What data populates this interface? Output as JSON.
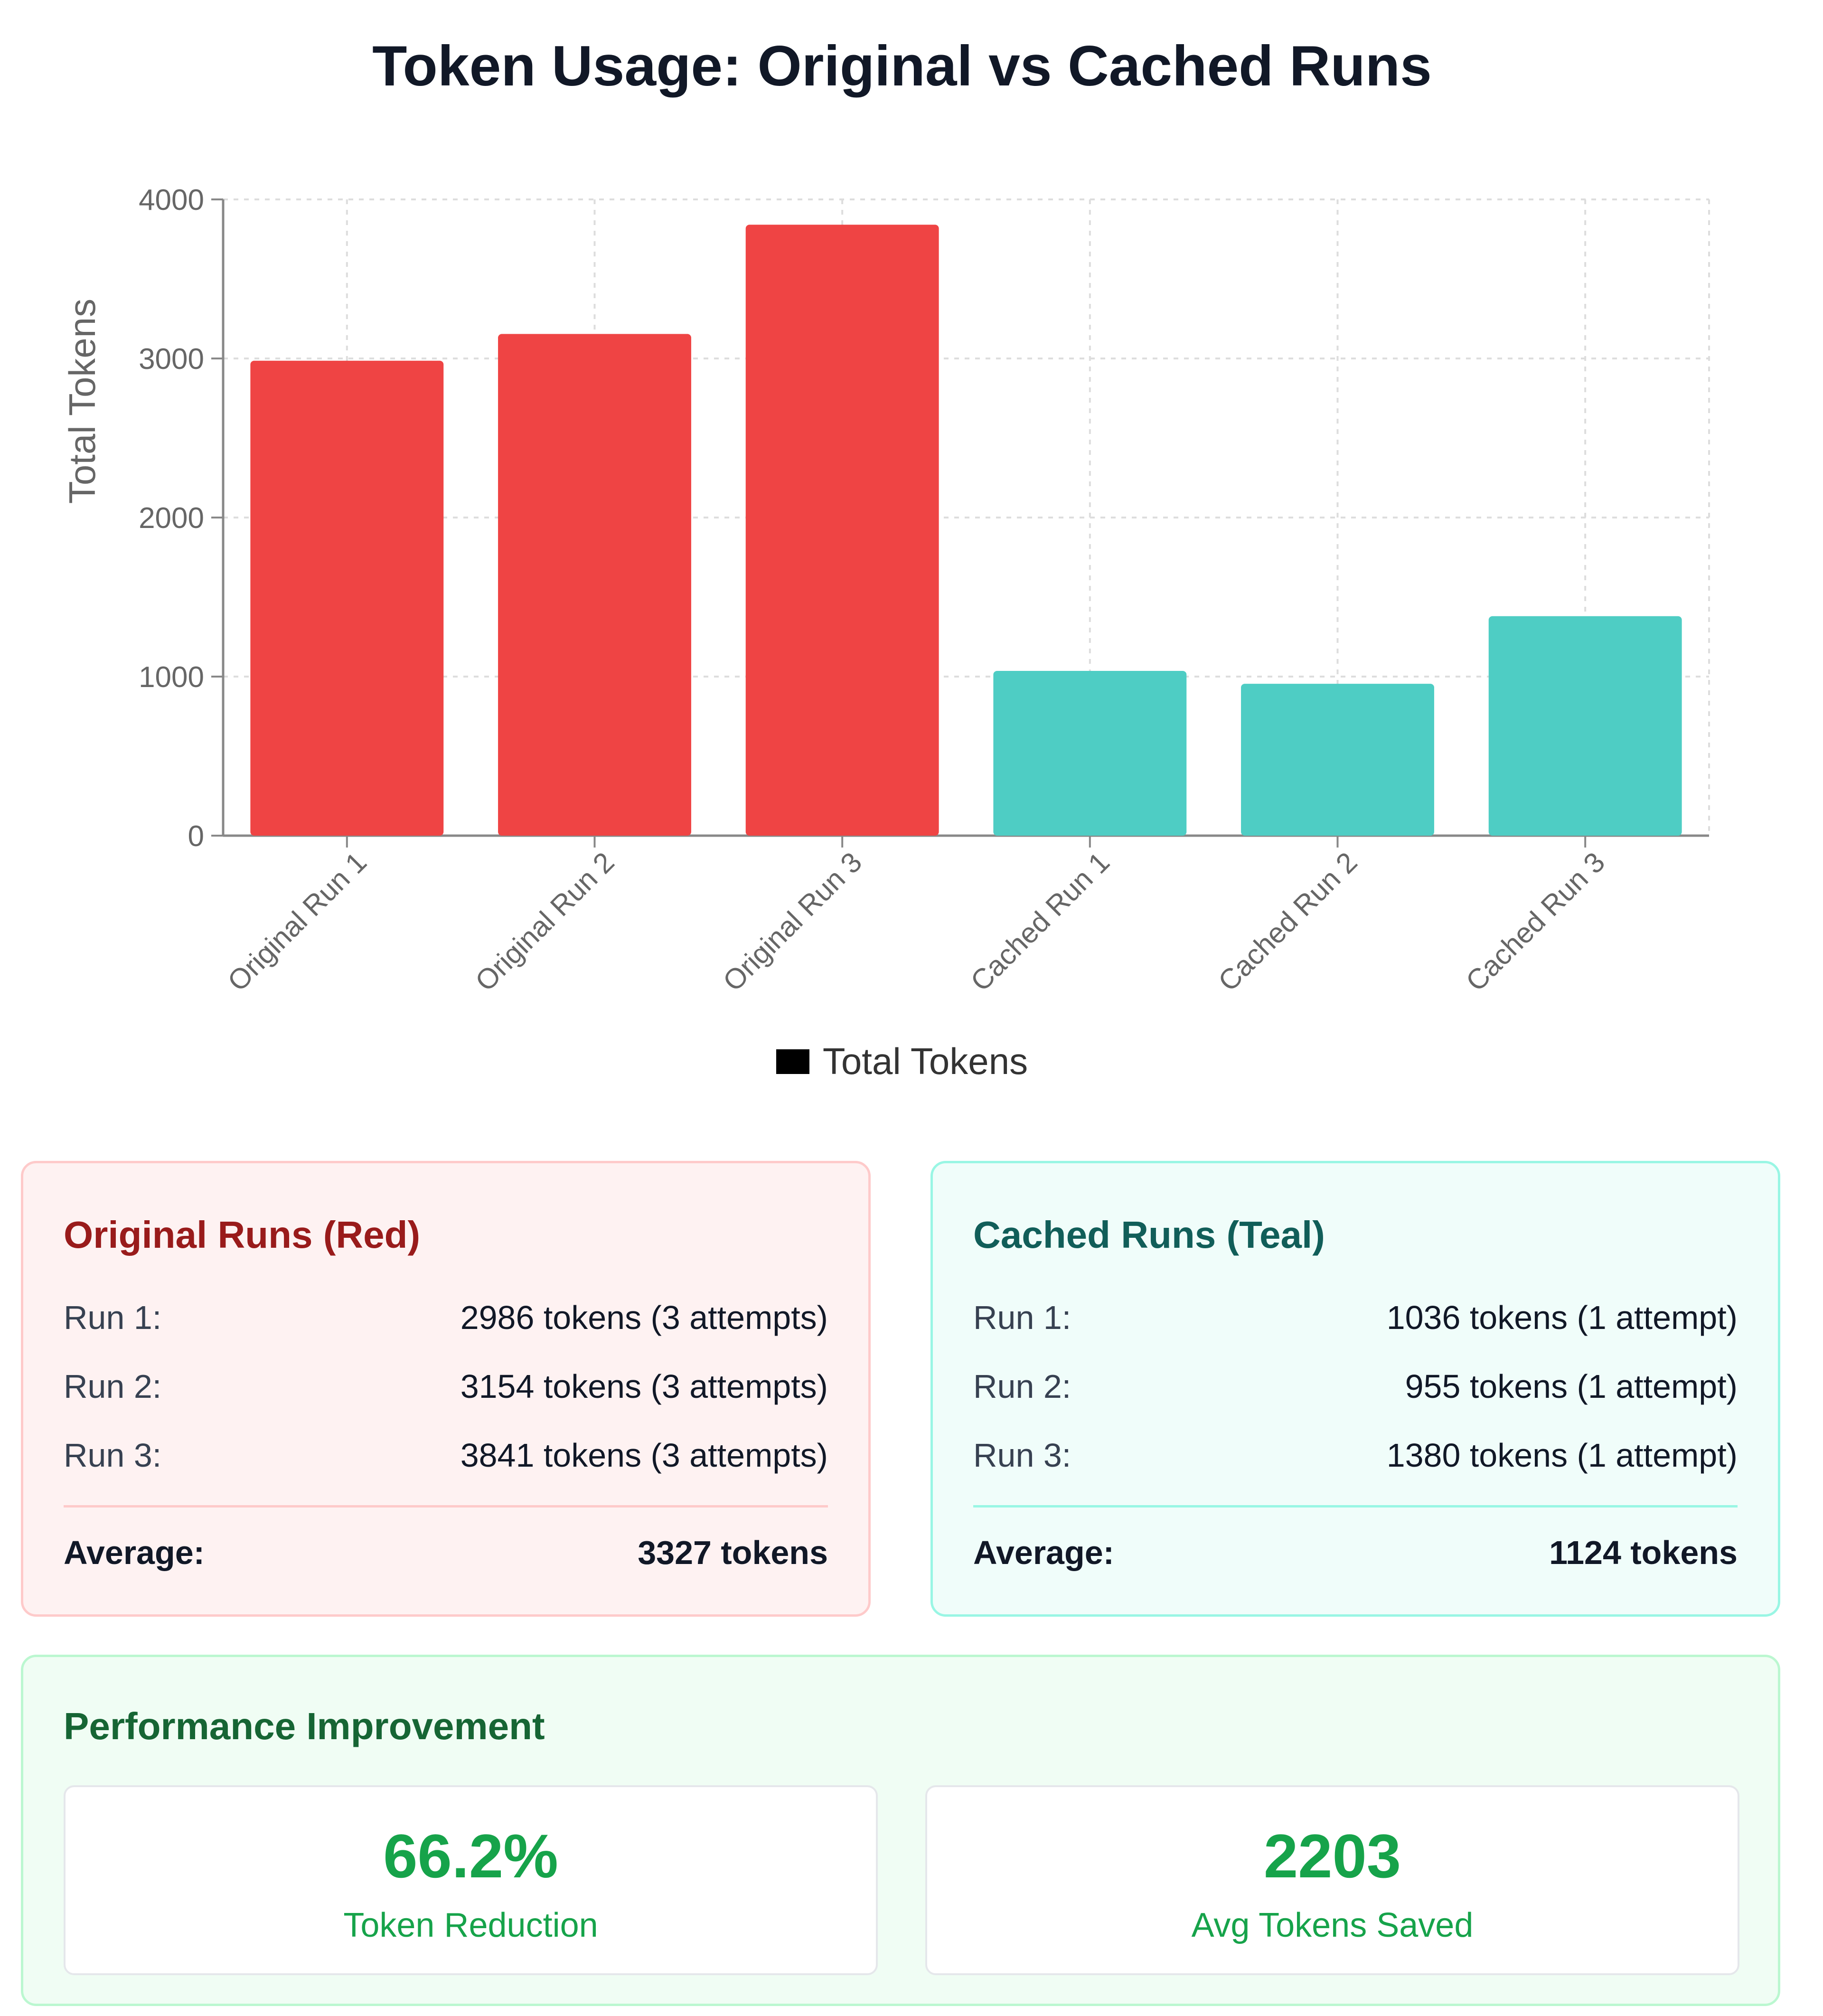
{
  "chart_data": {
    "type": "bar",
    "title": "Token Usage: Original vs Cached Runs",
    "ylabel": "Total Tokens",
    "xlabel": "",
    "ylim": [
      0,
      4000
    ],
    "yticks": [
      "0",
      "1000",
      "2000",
      "3000",
      "4000"
    ],
    "grid": true,
    "legend_position": "bottom",
    "categories": [
      "Original Run 1",
      "Original Run 2",
      "Original Run 3",
      "Cached Run 1",
      "Cached Run 2",
      "Cached Run 3"
    ],
    "series": [
      {
        "name": "Total Tokens",
        "values": [
          2986,
          3154,
          3841,
          1036,
          955,
          1380
        ],
        "colors": [
          "#ef4444",
          "#ef4444",
          "#ef4444",
          "#4ecdc4",
          "#4ecdc4",
          "#4ecdc4"
        ]
      }
    ]
  },
  "legend": {
    "label": "Total Tokens",
    "swatch_color": "#000000"
  },
  "original_card": {
    "title": "Original Runs (Red)",
    "runs": [
      {
        "label": "Run 1:",
        "value": "2986 tokens (3 attempts)"
      },
      {
        "label": "Run 2:",
        "value": "3154 tokens (3 attempts)"
      },
      {
        "label": "Run 3:",
        "value": "3841 tokens (3 attempts)"
      }
    ],
    "average_label": "Average:",
    "average_value": "3327 tokens"
  },
  "cached_card": {
    "title": "Cached Runs (Teal)",
    "runs": [
      {
        "label": "Run 1:",
        "value": "1036 tokens (1 attempt)"
      },
      {
        "label": "Run 2:",
        "value": "955 tokens (1 attempt)"
      },
      {
        "label": "Run 3:",
        "value": "1380 tokens (1 attempt)"
      }
    ],
    "average_label": "Average:",
    "average_value": "1124 tokens"
  },
  "performance": {
    "title": "Performance Improvement",
    "reduction_value": "66.2%",
    "reduction_label": "Token Reduction",
    "saved_value": "2203",
    "saved_label": "Avg Tokens Saved"
  },
  "colors": {
    "original_bar": "#ef4444",
    "cached_bar": "#4ecdc4",
    "grid": "#dddddd",
    "axis": "#888888"
  }
}
